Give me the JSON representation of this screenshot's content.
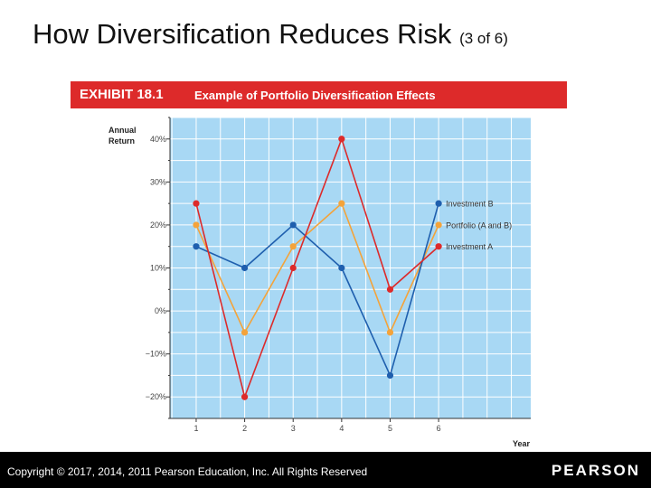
{
  "slide": {
    "title_main": "How Diversification Reduces Risk",
    "title_sub": "(3 of 6)"
  },
  "exhibit": {
    "number": "EXHIBIT 18.1",
    "caption": "Example of Portfolio Diversification Effects"
  },
  "footer": {
    "copyright": "Copyright © 2017, 2014, 2011 Pearson Education, Inc. All Rights Reserved",
    "brand": "PEARSON"
  },
  "colors": {
    "plot_bg": "#a8d8f4",
    "grid": "#ffffff",
    "axis": "#333333",
    "investment_a": "#dd2a2a",
    "investment_b": "#1f5fae",
    "portfolio": "#f4a33a",
    "exhibit_bg": "#dd2a2a",
    "footer_bg": "#000000"
  },
  "chart_data": {
    "type": "line",
    "title": "Example of Portfolio Diversification Effects",
    "ylabel": "Annual Return",
    "xlabel": "Year",
    "x": [
      1,
      2,
      3,
      4,
      5,
      6
    ],
    "ylim": [
      -25,
      45
    ],
    "yticks": [
      40,
      30,
      20,
      10,
      0,
      -10,
      -20
    ],
    "ytick_labels": [
      "40%",
      "30%",
      "20%",
      "10%",
      "0%",
      "−10%",
      "−20%"
    ],
    "series": [
      {
        "name": "Investment A",
        "values": [
          25,
          -20,
          10,
          40,
          5,
          15
        ],
        "color": "#dd2a2a"
      },
      {
        "name": "Investment B",
        "values": [
          15,
          10,
          20,
          10,
          -15,
          25
        ],
        "color": "#1f5fae"
      },
      {
        "name": "Portfolio (A and B)",
        "values": [
          20,
          -5,
          15,
          25,
          -5,
          20
        ],
        "color": "#f4a33a"
      }
    ]
  }
}
